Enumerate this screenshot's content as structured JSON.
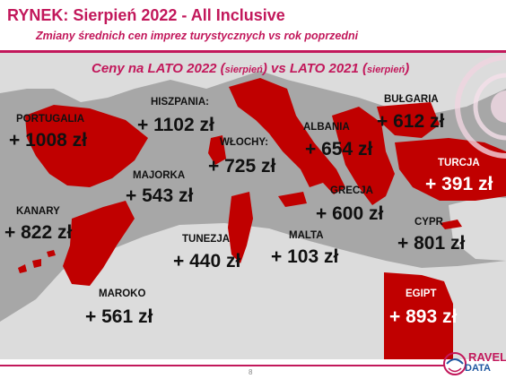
{
  "header": {
    "title": "RYNEK: Sierpień 2022 - All Inclusive",
    "subtitle": "Zmiany średnich cen imprez turystycznych vs rok poprzedni"
  },
  "map": {
    "heading_part1": "Ceny na LATO 2022 (",
    "heading_small1": "sierpień",
    "heading_part2": ") vs  LATO 2021 (",
    "heading_small2": "sierpień",
    "heading_part3": ")",
    "highlight_color": "#c00000",
    "land_color": "#dcdcdc",
    "sea_color": "#a7a7a7"
  },
  "destinations": [
    {
      "country": "PORTUGALIA",
      "price": "+ 1008 zł"
    },
    {
      "country": "HISZPANIA:",
      "price": "+ 1102 zł"
    },
    {
      "country": "MAJORKA",
      "price": "+ 543 zł"
    },
    {
      "country": "KANARY",
      "price": "+ 822 zł"
    },
    {
      "country": "WŁOCHY:",
      "price": "+ 725 zł"
    },
    {
      "country": "ALBANIA",
      "price": "+ 654 zł"
    },
    {
      "country": "BUŁGARIA",
      "price": "+ 612 zł"
    },
    {
      "country": "TURCJA",
      "price": "+ 391 zł"
    },
    {
      "country": "GRECJA",
      "price": "+ 600 zł"
    },
    {
      "country": "CYPR",
      "price": "+ 801 zł"
    },
    {
      "country": "TUNEZJA",
      "price": "+ 440 zł"
    },
    {
      "country": "MALTA",
      "price": "+ 103 zł"
    },
    {
      "country": "MAROKO",
      "price": "+ 561 zł"
    },
    {
      "country": "EGIPT",
      "price": "+ 893 zł"
    }
  ],
  "footer": {
    "page_number": "8",
    "logo_line1": "RAVEL",
    "logo_line2": "DATA"
  }
}
